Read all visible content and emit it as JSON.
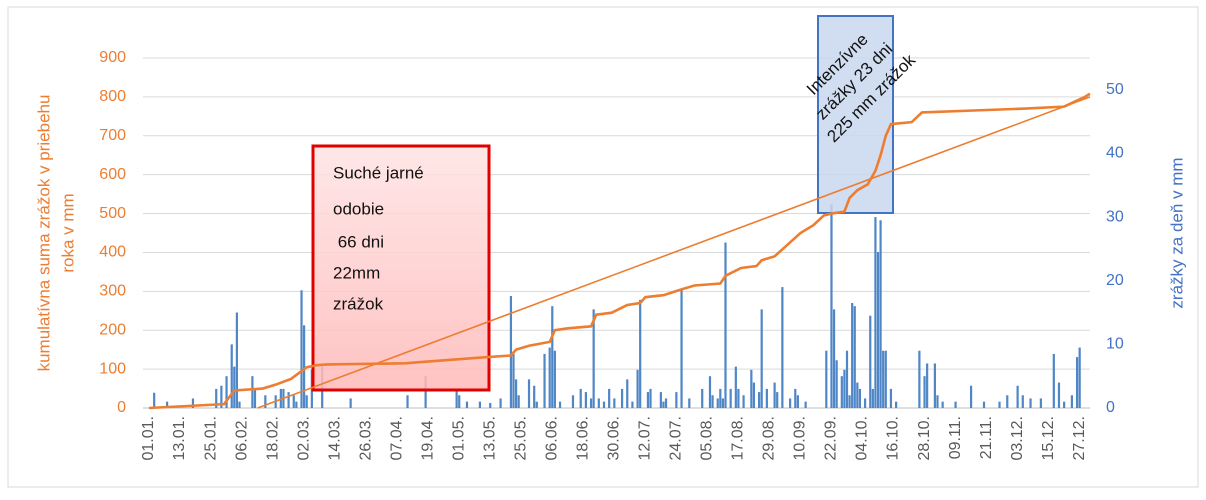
{
  "chart_data": {
    "type": "combo",
    "y_label": [
      "kumulatívna suma zrážok v priebehu",
      "roka v mm"
    ],
    "y2_label": "zrážky za deň v mm",
    "xlim": [
      1,
      365
    ],
    "xticks": [
      {
        "value": 1,
        "label": "01.01."
      },
      {
        "value": 13,
        "label": "13.01."
      },
      {
        "value": 25,
        "label": "25.01."
      },
      {
        "value": 37,
        "label": "06.02."
      },
      {
        "value": 49,
        "label": "18.02."
      },
      {
        "value": 61,
        "label": "02.03."
      },
      {
        "value": 73,
        "label": "14.03."
      },
      {
        "value": 85,
        "label": "26.03."
      },
      {
        "value": 97,
        "label": "07.04."
      },
      {
        "value": 109,
        "label": "19.04."
      },
      {
        "value": 121,
        "label": "01.05."
      },
      {
        "value": 133,
        "label": "13.05."
      },
      {
        "value": 145,
        "label": "25.05."
      },
      {
        "value": 157,
        "label": "06.06."
      },
      {
        "value": 169,
        "label": "18.06."
      },
      {
        "value": 181,
        "label": "30.06."
      },
      {
        "value": 193,
        "label": "12.07."
      },
      {
        "value": 205,
        "label": "24.07."
      },
      {
        "value": 217,
        "label": "05.08."
      },
      {
        "value": 229,
        "label": "17.08."
      },
      {
        "value": 241,
        "label": "29.08."
      },
      {
        "value": 253,
        "label": "10.09."
      },
      {
        "value": 265,
        "label": "22.09."
      },
      {
        "value": 277,
        "label": "04.10."
      },
      {
        "value": 289,
        "label": "16.10."
      },
      {
        "value": 301,
        "label": "28.10."
      },
      {
        "value": 313,
        "label": "09.11."
      },
      {
        "value": 325,
        "label": "21.11."
      },
      {
        "value": 337,
        "label": "03.12."
      },
      {
        "value": 349,
        "label": "15.12."
      },
      {
        "value": 361,
        "label": "27.12."
      }
    ],
    "ylim": [
      0,
      900
    ],
    "yticks": [
      0,
      100,
      200,
      300,
      400,
      500,
      600,
      700,
      800,
      900
    ],
    "y2lim": [
      0,
      55
    ],
    "y2ticks": [
      0,
      10,
      20,
      30,
      40,
      50
    ],
    "grid": true,
    "series": [
      {
        "type": "bar",
        "axis": "y2",
        "color": "#4f86c6",
        "x": [
          3,
          8,
          18,
          27,
          29,
          31,
          33,
          34,
          35,
          36,
          41,
          42,
          46,
          50,
          52,
          53,
          55,
          57,
          58,
          60,
          61,
          62,
          64,
          68,
          79,
          101,
          108,
          120,
          121,
          124,
          129,
          133,
          137,
          141,
          142,
          143,
          144,
          148,
          150,
          151,
          154,
          156,
          157,
          158,
          160,
          165,
          168,
          170,
          172,
          173,
          175,
          177,
          179,
          181,
          184,
          186,
          188,
          190,
          191,
          194,
          195,
          199,
          200,
          201,
          205,
          207,
          210,
          215,
          218,
          219,
          221,
          222,
          223,
          224,
          226,
          228,
          229,
          231,
          234,
          235,
          237,
          238,
          240,
          243,
          244,
          246,
          249,
          251,
          252,
          255,
          263,
          265,
          266,
          267,
          269,
          270,
          271,
          272,
          273,
          274,
          275,
          276,
          278,
          280,
          281,
          282,
          283,
          284,
          285,
          286,
          288,
          290,
          299,
          301,
          302,
          305,
          306,
          308,
          313,
          319,
          324,
          330,
          333,
          337,
          339,
          342,
          346,
          351,
          353,
          355,
          358,
          360,
          361
        ],
        "values": [
          2.4,
          1,
          1.5,
          3,
          3.5,
          5,
          10,
          6.5,
          15,
          1,
          5,
          3,
          2,
          2,
          3,
          3,
          2.5,
          2,
          1,
          18.5,
          13,
          2,
          6,
          6.5,
          1.5,
          2,
          5,
          3,
          2,
          1,
          1,
          0.8,
          1.5,
          17.6,
          8.5,
          4.5,
          2,
          4.5,
          3.5,
          1,
          8.5,
          9.5,
          16,
          9,
          1,
          2,
          3,
          2.5,
          1.5,
          15.5,
          1.5,
          1,
          3,
          1.5,
          3,
          4.5,
          1,
          6,
          17,
          2.5,
          3,
          2.5,
          1,
          1.5,
          2.5,
          18.5,
          1.5,
          3,
          5,
          2,
          1.5,
          3,
          1.5,
          26,
          3,
          6.5,
          3,
          2,
          6,
          4,
          2.5,
          15.5,
          3,
          4,
          2.5,
          19,
          1.5,
          3,
          2,
          1,
          9,
          32,
          15.5,
          7.5,
          5,
          6,
          9,
          2,
          16.5,
          16,
          4,
          3,
          1.5,
          14.5,
          3,
          30,
          24.5,
          29.5,
          9,
          9,
          3,
          1,
          9,
          5,
          7,
          7,
          2,
          1,
          1,
          3.5,
          1,
          1,
          2,
          3.5,
          2,
          1.5,
          1.5,
          8.5,
          4,
          1,
          2,
          8,
          9.5
        ]
      },
      {
        "type": "line",
        "axis": "y",
        "color": "#ed7d31",
        "x": [
          1,
          30,
          34,
          45,
          50,
          56,
          60,
          62,
          66,
          70,
          100,
          110,
          130,
          141,
          143,
          148,
          156,
          158,
          163,
          172,
          174,
          180,
          186,
          191,
          193,
          200,
          207,
          212,
          222,
          224,
          230,
          236,
          238,
          243,
          248,
          253,
          258,
          262,
          265,
          270,
          272,
          275,
          279,
          282,
          284,
          286,
          288,
          296,
          300,
          320,
          340,
          355,
          363,
          365
        ],
        "values": [
          0,
          10,
          45,
          50,
          60,
          75,
          95,
          105,
          110,
          112,
          115,
          120,
          130,
          135,
          150,
          160,
          170,
          200,
          205,
          210,
          240,
          245,
          265,
          270,
          285,
          290,
          305,
          315,
          320,
          340,
          360,
          365,
          380,
          390,
          420,
          450,
          470,
          495,
          500,
          505,
          540,
          560,
          575,
          610,
          650,
          700,
          730,
          735,
          760,
          765,
          770,
          775,
          800,
          808
        ]
      },
      {
        "type": "trend",
        "axis": "y",
        "color": "#ed7d31",
        "x": [
          43,
          365
        ],
        "values": [
          0,
          800
        ]
      }
    ],
    "annotations": [
      {
        "lines": [
          "Suché jarné",
          "odobie",
          " 66 dni",
          "22mm",
          "zrážok"
        ]
      },
      {
        "lines": [
          "Intenzívne",
          "zrážky 23 dni",
          "225 mm zrážok"
        ]
      }
    ]
  }
}
